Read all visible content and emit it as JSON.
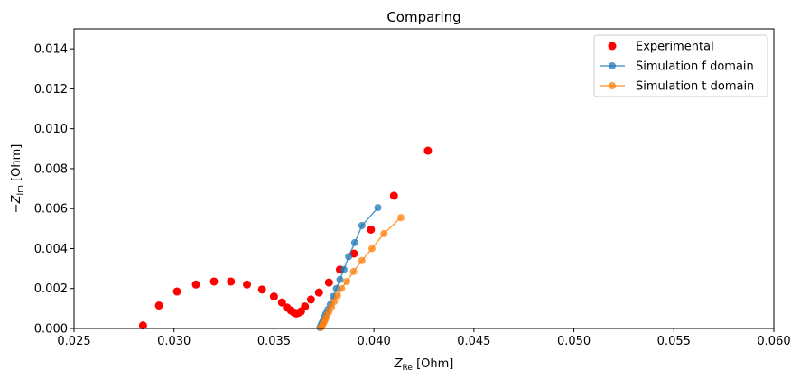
{
  "chart_data": {
    "type": "scatter",
    "title": "Comparing",
    "xlabel": "Z_Re [Ohm]",
    "ylabel": "−Z_Im [Ohm]",
    "xlim": [
      0.025,
      0.06
    ],
    "ylim": [
      0,
      0.015
    ],
    "x_ticks": [
      "0.025",
      "0.030",
      "0.035",
      "0.040",
      "0.045",
      "0.050",
      "0.055",
      "0.060"
    ],
    "y_ticks": [
      "0.000",
      "0.002",
      "0.004",
      "0.006",
      "0.008",
      "0.010",
      "0.012",
      "0.014"
    ],
    "x_tick_values": [
      0.025,
      0.03,
      0.035,
      0.04,
      0.045,
      0.05,
      0.055,
      0.06
    ],
    "y_tick_values": [
      0,
      0.002,
      0.004,
      0.006,
      0.008,
      0.01,
      0.012,
      0.014
    ],
    "grid": false,
    "legend_position": "top-right",
    "series": [
      {
        "name": "Experimental",
        "style": "markers",
        "color": "#ff0000",
        "x": [
          0.02845,
          0.02925,
          0.03015,
          0.0311,
          0.032,
          0.03285,
          0.03365,
          0.0344,
          0.035,
          0.0354,
          0.03565,
          0.03585,
          0.036,
          0.03612,
          0.03622,
          0.03635,
          0.03655,
          0.03685,
          0.03725,
          0.03775,
          0.0383,
          0.039,
          0.03985,
          0.041,
          0.0427
        ],
        "y": [
          0.00015,
          0.00115,
          0.00185,
          0.0022,
          0.00235,
          0.00235,
          0.0022,
          0.00195,
          0.0016,
          0.0013,
          0.00105,
          0.0009,
          0.0008,
          0.00075,
          0.00078,
          0.00085,
          0.0011,
          0.00145,
          0.0018,
          0.0023,
          0.00295,
          0.00375,
          0.00495,
          0.00665,
          0.0089
        ]
      },
      {
        "name": "Simulation f domain",
        "style": "line-markers",
        "color": "#1f77b4",
        "x": [
          0.0373,
          0.03735,
          0.0374,
          0.03746,
          0.03752,
          0.0376,
          0.0377,
          0.03782,
          0.03796,
          0.03812,
          0.0383,
          0.0385,
          0.03874,
          0.03904,
          0.0394,
          0.0402
        ],
        "y": [
          5e-05,
          0.00015,
          0.00028,
          0.00042,
          0.00058,
          0.00075,
          0.00095,
          0.0012,
          0.0016,
          0.002,
          0.00245,
          0.00295,
          0.0036,
          0.0043,
          0.00515,
          0.00605
        ]
      },
      {
        "name": "Simulation t domain",
        "style": "line-markers",
        "color": "#ff7f0e",
        "x": [
          0.03735,
          0.0374,
          0.03746,
          0.03752,
          0.03758,
          0.03766,
          0.03776,
          0.03788,
          0.03802,
          0.03818,
          0.03838,
          0.03864,
          0.03898,
          0.0394,
          0.0399,
          0.0405,
          0.04135
        ],
        "y": [
          5e-05,
          0.00012,
          0.00022,
          0.00034,
          0.00048,
          0.00065,
          0.00085,
          0.00108,
          0.00135,
          0.00165,
          0.002,
          0.00235,
          0.00285,
          0.0034,
          0.004,
          0.00475,
          0.00555
        ]
      }
    ]
  }
}
